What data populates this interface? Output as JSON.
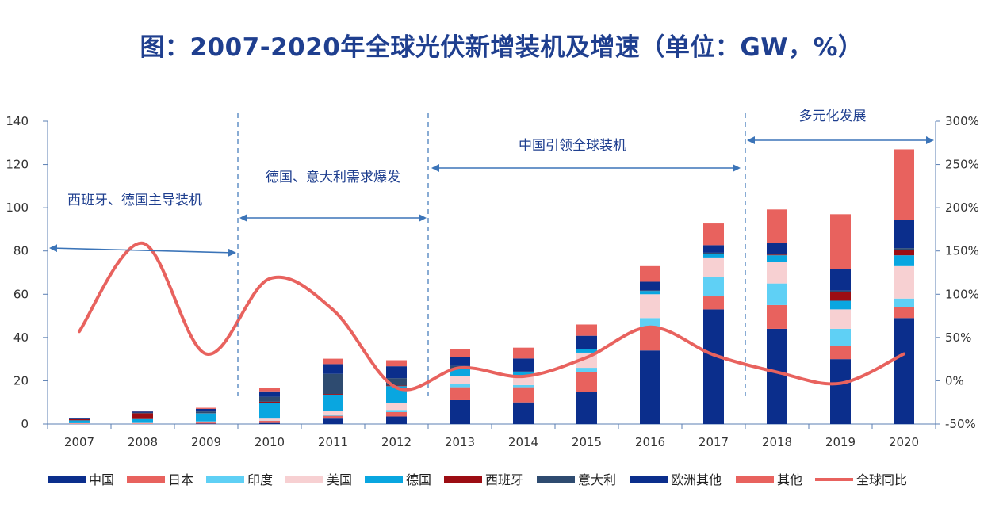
{
  "title": "图：2007-2020年全球光伏新增装机及增速（单位：GW，%）",
  "phases": [
    {
      "label": "西班牙、德国主导装机",
      "from": "2007",
      "to": "2010"
    },
    {
      "label": "德国、意大利需求爆发",
      "from": "2010",
      "to": "2013"
    },
    {
      "label": "中国引领全球装机",
      "from": "2013",
      "to": "2017"
    },
    {
      "label": "多元化发展",
      "from": "2018",
      "to": "2020"
    }
  ],
  "chart_data": {
    "type": "bar",
    "stacked": true,
    "categories": [
      "2007",
      "2008",
      "2009",
      "2010",
      "2011",
      "2012",
      "2013",
      "2014",
      "2015",
      "2016",
      "2017",
      "2018",
      "2019",
      "2020"
    ],
    "series": [
      {
        "name": "中国",
        "color": "#0b2e8c",
        "values": [
          0,
          0,
          0.2,
          0.5,
          2.5,
          3.5,
          11,
          10,
          15,
          34,
          53,
          44,
          30,
          49
        ]
      },
      {
        "name": "日本",
        "color": "#e8625e",
        "values": [
          0.2,
          0.2,
          0.5,
          1,
          1.3,
          2,
          6,
          7,
          9,
          11,
          6,
          11,
          6,
          5
        ]
      },
      {
        "name": "印度",
        "color": "#5fd0f5",
        "values": [
          0,
          0,
          0,
          0.1,
          0.3,
          1,
          1.5,
          1,
          2,
          4,
          9,
          10,
          8,
          4
        ]
      },
      {
        "name": "美国",
        "color": "#f7d0d2",
        "values": [
          0.2,
          0.3,
          0.5,
          0.9,
          1.9,
          3.4,
          3.5,
          4,
          7,
          11,
          9,
          10,
          9,
          15
        ]
      },
      {
        "name": "德国",
        "color": "#09a6e0",
        "values": [
          1.3,
          1.8,
          3.8,
          7.4,
          7.5,
          7.6,
          3.3,
          1.9,
          1.5,
          1.5,
          1.8,
          3,
          4,
          5
        ]
      },
      {
        "name": "西班牙",
        "color": "#9c0d13",
        "values": [
          0.5,
          2.7,
          0.1,
          0.4,
          0.4,
          0.3,
          0.1,
          0,
          0,
          0,
          0,
          0.3,
          4,
          2.5
        ]
      },
      {
        "name": "意大利",
        "color": "#2e4b70",
        "values": [
          0.1,
          0.3,
          0.7,
          2.3,
          9.3,
          3.4,
          1.5,
          0.4,
          0.3,
          0.3,
          0.4,
          0.4,
          0.7,
          0.8
        ]
      },
      {
        "name": "欧洲其他",
        "color": "#0b2e8c",
        "values": [
          0.3,
          0.5,
          1.2,
          2.5,
          4.5,
          5.5,
          4.2,
          6,
          6,
          4,
          3.5,
          5,
          10,
          13
        ]
      },
      {
        "name": "其他",
        "color": "#e8625e",
        "values": [
          0.2,
          0.2,
          0.5,
          1.5,
          2.5,
          2.8,
          3.4,
          5,
          5.2,
          7.2,
          10,
          15.5,
          25.3,
          32.7
        ]
      }
    ],
    "line_series": {
      "name": "全球同比",
      "color": "#e8625e",
      "axis": "right",
      "values": [
        57,
        159,
        31,
        118,
        82,
        -8,
        15,
        5,
        27,
        62,
        30,
        10,
        -3,
        31
      ]
    },
    "ylim": [
      0,
      140
    ],
    "y_ticks": [
      "0",
      "20",
      "40",
      "60",
      "80",
      "100",
      "120",
      "140"
    ],
    "y2lim": [
      -50,
      300
    ],
    "y2_ticks": [
      "-50%",
      "0%",
      "50%",
      "100%",
      "150%",
      "200%",
      "250%",
      "300%"
    ],
    "legend_position": "bottom"
  }
}
